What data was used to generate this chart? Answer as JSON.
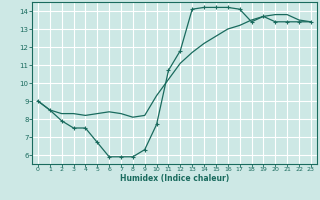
{
  "xlabel": "Humidex (Indice chaleur)",
  "background_color": "#cde8e5",
  "grid_color": "#ffffff",
  "line_color": "#1a6b5e",
  "xlim": [
    -0.5,
    23.5
  ],
  "ylim": [
    5.5,
    14.5
  ],
  "xticks": [
    0,
    1,
    2,
    3,
    4,
    5,
    6,
    7,
    8,
    9,
    10,
    11,
    12,
    13,
    14,
    15,
    16,
    17,
    18,
    19,
    20,
    21,
    22,
    23
  ],
  "yticks": [
    6,
    7,
    8,
    9,
    10,
    11,
    12,
    13,
    14
  ],
  "line1_x": [
    0,
    1,
    2,
    3,
    4,
    5,
    6,
    7,
    8,
    9,
    10,
    11,
    12,
    13,
    14,
    15,
    16,
    17,
    18,
    19,
    20,
    21,
    22,
    23
  ],
  "line1_y": [
    9.0,
    8.5,
    7.9,
    7.5,
    7.5,
    6.7,
    5.9,
    5.9,
    5.9,
    6.3,
    7.7,
    10.7,
    11.8,
    14.1,
    14.2,
    14.2,
    14.2,
    14.1,
    13.4,
    13.7,
    13.4,
    13.4,
    13.4,
    13.4
  ],
  "line2_x": [
    0,
    1,
    2,
    3,
    4,
    5,
    6,
    7,
    8,
    9,
    10,
    11,
    12,
    13,
    14,
    15,
    16,
    17,
    18,
    19,
    20,
    21,
    22,
    23
  ],
  "line2_y": [
    9.0,
    8.5,
    8.3,
    8.3,
    8.2,
    8.3,
    8.4,
    8.3,
    8.1,
    8.2,
    9.3,
    10.2,
    11.1,
    11.7,
    12.2,
    12.6,
    13.0,
    13.2,
    13.5,
    13.7,
    13.8,
    13.8,
    13.5,
    13.4
  ]
}
